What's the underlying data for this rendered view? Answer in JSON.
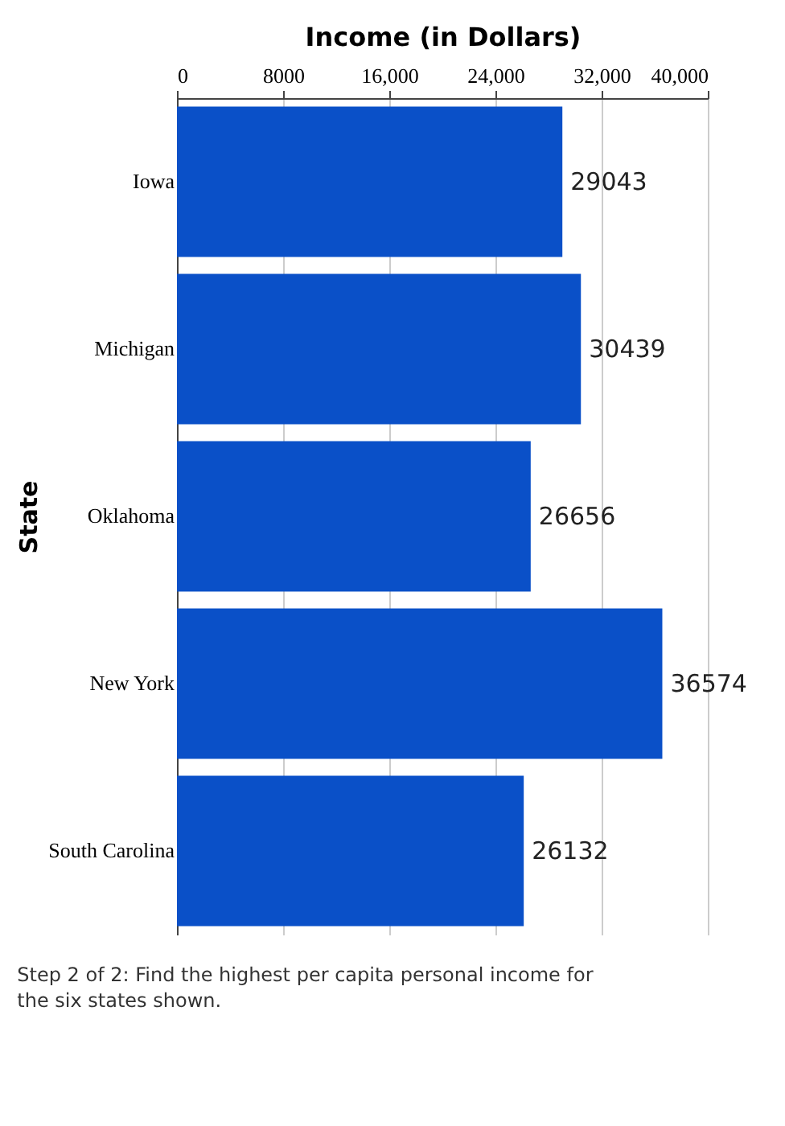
{
  "chart_data": {
    "type": "bar",
    "orientation": "horizontal",
    "xlabel": "Income (in Dollars)",
    "ylabel": "State",
    "categories": [
      "Iowa",
      "Michigan",
      "Oklahoma",
      "New York",
      "South Carolina"
    ],
    "values": [
      29043,
      30439,
      26656,
      36574,
      26132
    ],
    "color": "#0a50c8",
    "xlim": [
      0,
      40000
    ],
    "xticks": [
      0,
      8000,
      {
        "value": 16000,
        "label": "16,000"
      },
      {
        "value": 24000,
        "label": "24,000"
      },
      {
        "value": 32000,
        "label": "32,000"
      },
      {
        "value": 40000,
        "label": "40,000"
      }
    ],
    "grid": "x",
    "data_labels": true,
    "annotations": [
      "Step 2 of 2: Find the highest per capita personal income for the six states shown."
    ]
  }
}
